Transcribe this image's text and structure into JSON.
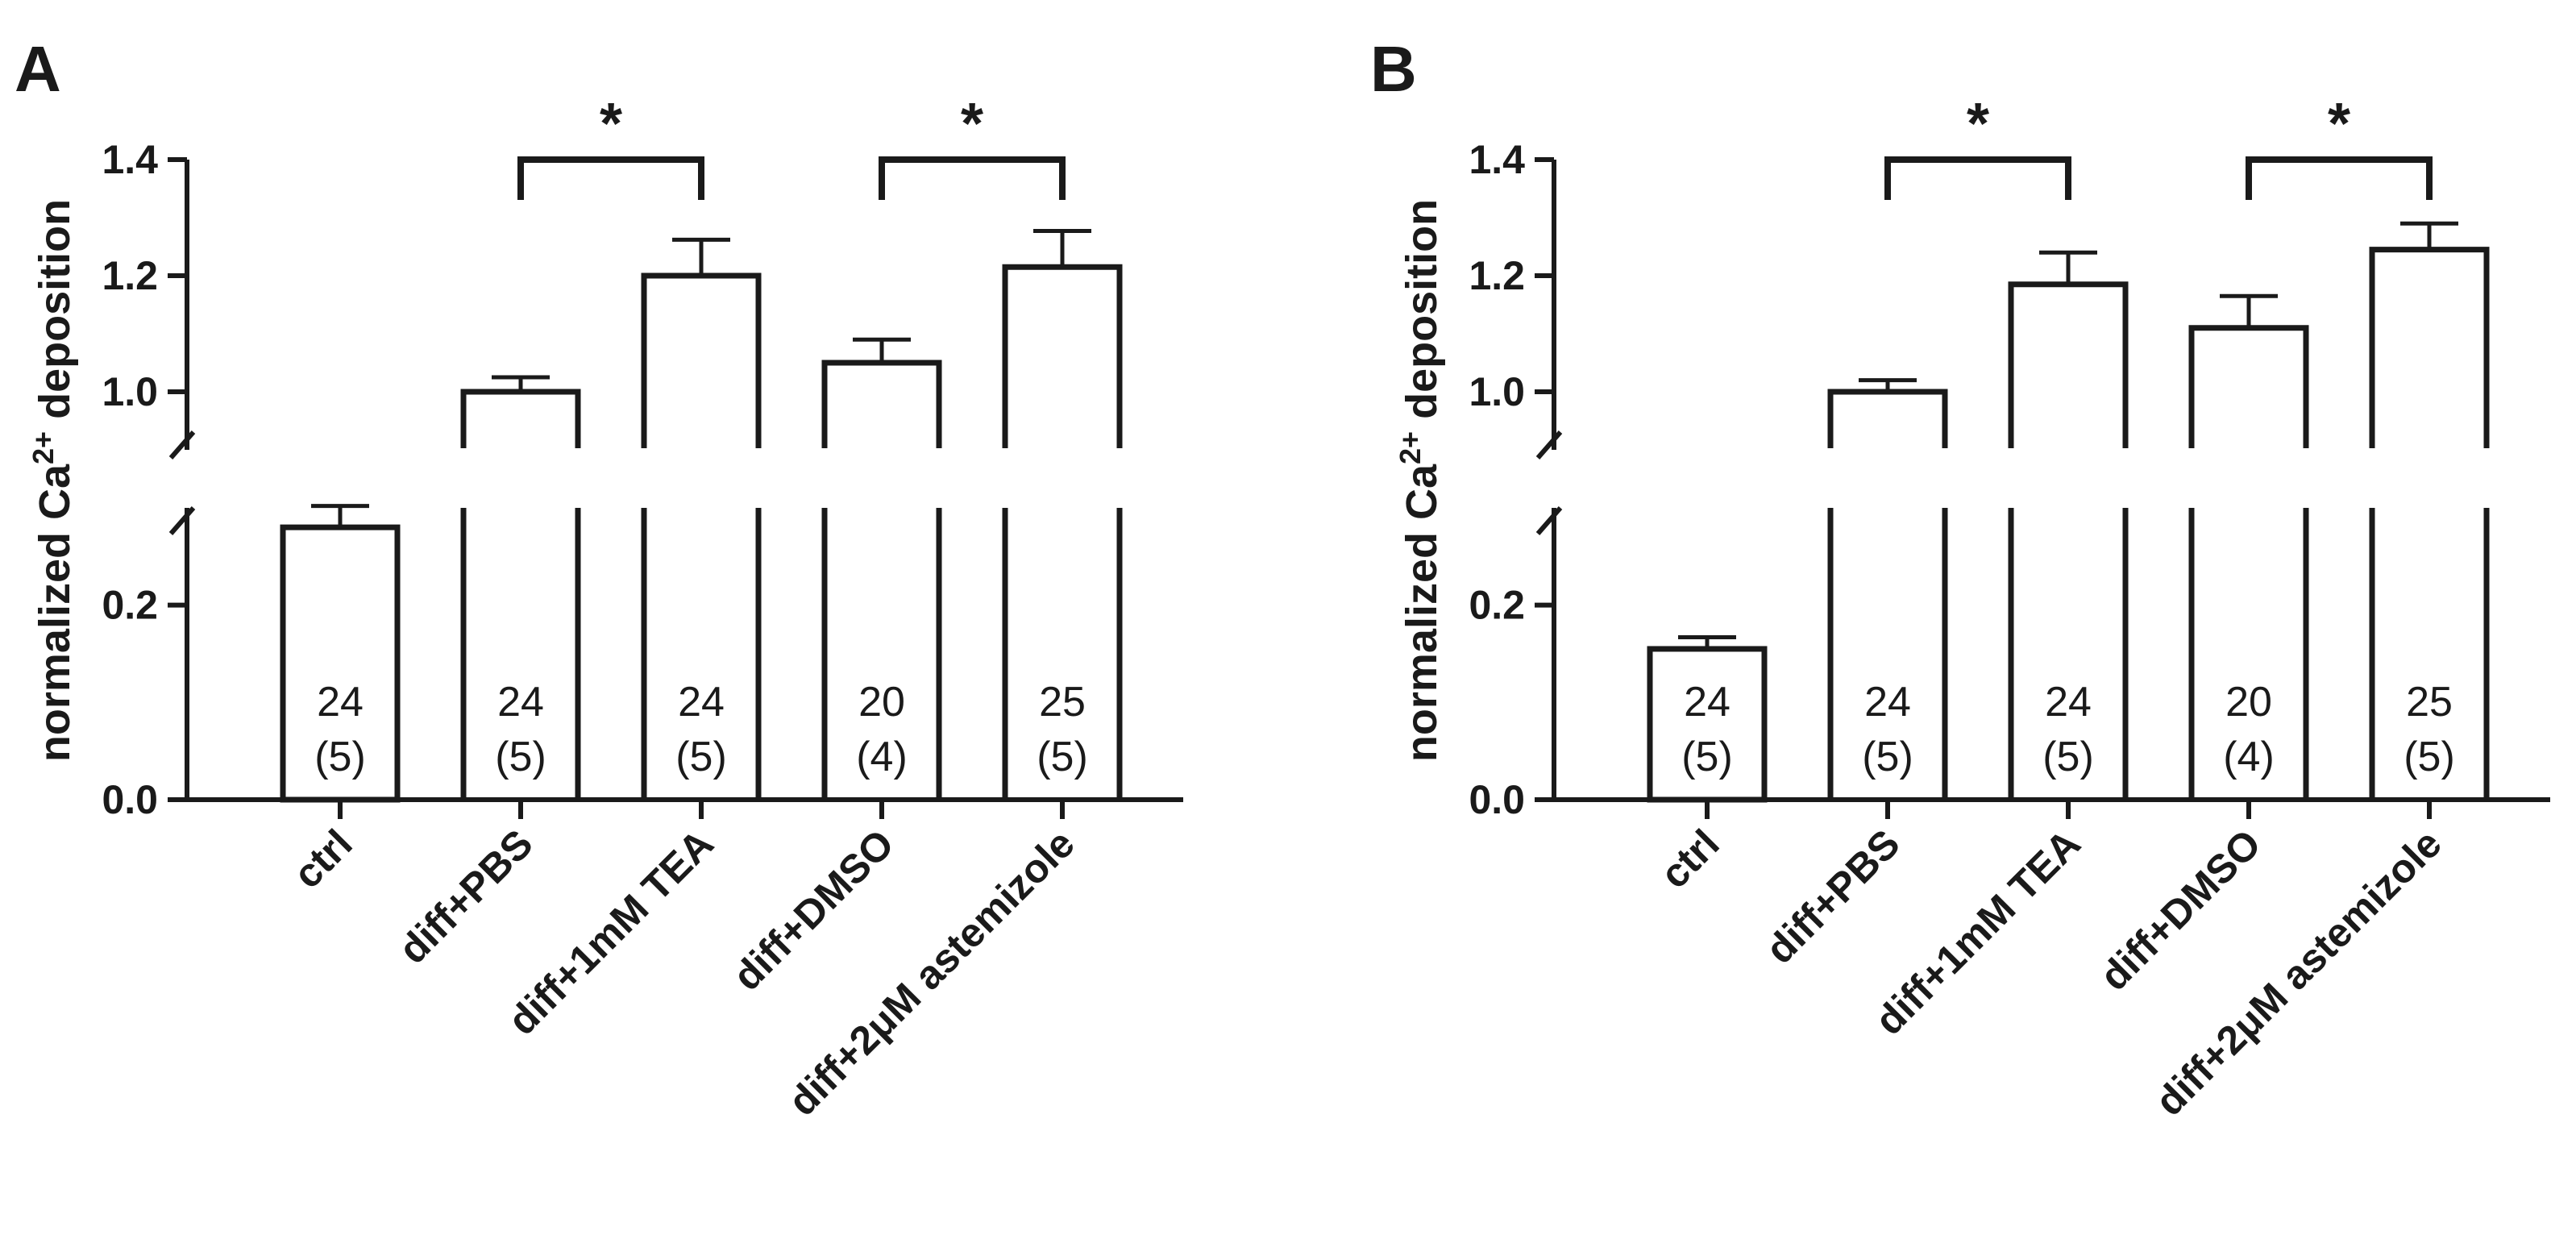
{
  "chart_data": [
    {
      "panel": "A",
      "type": "bar",
      "ylabel": "normalized Ca2+ deposition",
      "ylabel_parts": {
        "prefix": "normalized Ca",
        "superscript": "2+",
        "suffix": " deposition"
      },
      "categories": [
        "ctrl",
        "diff+PBS",
        "diff+1mM TEA",
        "diff+DMSO",
        "diff+2μM astemizole"
      ],
      "values": [
        0.28,
        1.0,
        1.2,
        1.05,
        1.215
      ],
      "errors": [
        0.022,
        0.025,
        0.062,
        0.04,
        0.062
      ],
      "n_labels": [
        [
          "24",
          "(5)"
        ],
        [
          "24",
          "(5)"
        ],
        [
          "24",
          "(5)"
        ],
        [
          "20",
          "(4)"
        ],
        [
          "25",
          "(5)"
        ]
      ],
      "broken_axis": {
        "lower_range": [
          0,
          0.3
        ],
        "upper_range": [
          0.9,
          1.4
        ]
      },
      "yticks_lower": [
        "0.0",
        "0.2"
      ],
      "yticks_upper": [
        "1.0",
        "1.2",
        "1.4"
      ],
      "significance": [
        {
          "from": 1,
          "to": 2,
          "label": "*"
        },
        {
          "from": 3,
          "to": 4,
          "label": "*"
        }
      ]
    },
    {
      "panel": "B",
      "type": "bar",
      "ylabel": "normalized Ca2+ deposition",
      "ylabel_parts": {
        "prefix": "normalized Ca",
        "superscript": "2+",
        "suffix": " deposition"
      },
      "categories": [
        "ctrl",
        "diff+PBS",
        "diff+1mM TEA",
        "diff+DMSO",
        "diff+2μM astemizole"
      ],
      "values": [
        0.155,
        1.0,
        1.185,
        1.11,
        1.245
      ],
      "errors": [
        0.012,
        0.02,
        0.055,
        0.055,
        0.045
      ],
      "n_labels": [
        [
          "24",
          "(5)"
        ],
        [
          "24",
          "(5)"
        ],
        [
          "24",
          "(5)"
        ],
        [
          "20",
          "(4)"
        ],
        [
          "25",
          "(5)"
        ]
      ],
      "broken_axis": {
        "lower_range": [
          0,
          0.3
        ],
        "upper_range": [
          0.9,
          1.4
        ]
      },
      "yticks_lower": [
        "0.0",
        "0.2"
      ],
      "yticks_upper": [
        "1.0",
        "1.2",
        "1.4"
      ],
      "significance": [
        {
          "from": 1,
          "to": 2,
          "label": "*"
        },
        {
          "from": 3,
          "to": 4,
          "label": "*"
        }
      ]
    }
  ]
}
